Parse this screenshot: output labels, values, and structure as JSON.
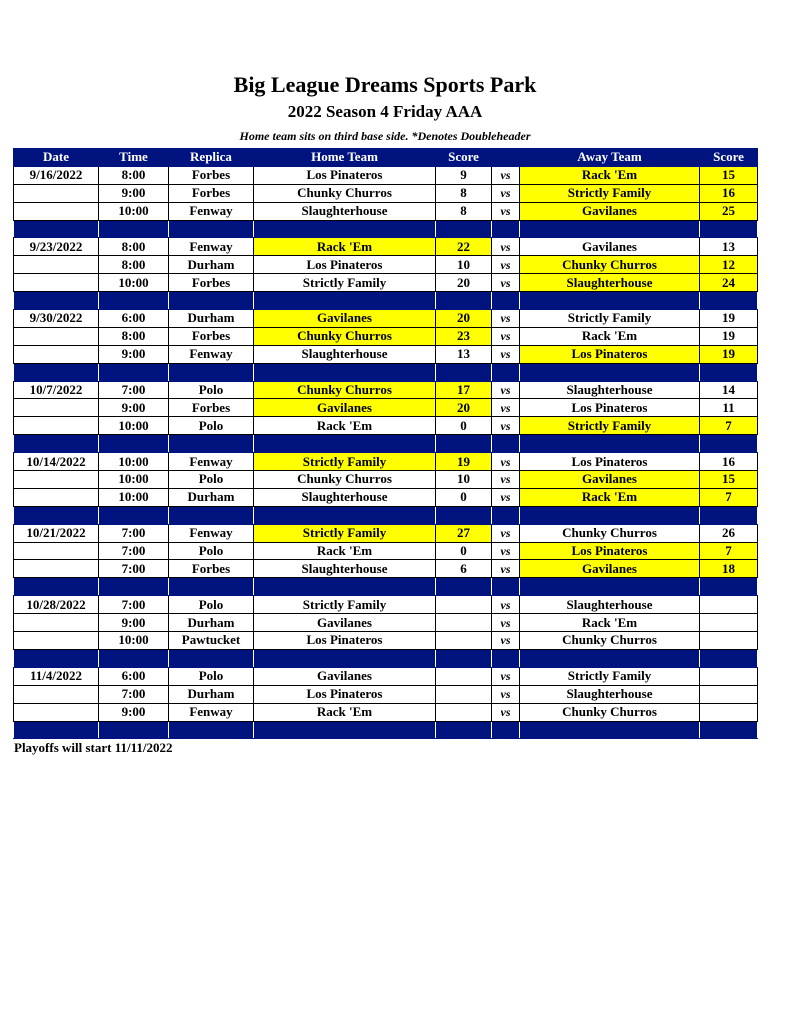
{
  "title": "Big League Dreams Sports Park",
  "subtitle": "2022 Season 4 Friday AAA",
  "note": "Home team sits on third base side.  *Denotes Doubleheader",
  "headers": [
    "Date",
    "Time",
    "Replica",
    "Home Team",
    "Score",
    "",
    "Away Team",
    "Score"
  ],
  "highlight_color": "#ffff00",
  "header_color": "#00137f",
  "weeks": [
    {
      "date": "9/16/2022",
      "games": [
        {
          "time": "8:00",
          "field": "Forbes",
          "home": "Los Pinateros",
          "hs": "9",
          "away": "Rack 'Em",
          "as": "15",
          "win": "away"
        },
        {
          "time": "9:00",
          "field": "Forbes",
          "home": "Chunky Churros",
          "hs": "8",
          "away": "Strictly Family",
          "as": "16",
          "win": "away"
        },
        {
          "time": "10:00",
          "field": "Fenway",
          "home": "Slaughterhouse",
          "hs": "8",
          "away": "Gavilanes",
          "as": "25",
          "win": "away"
        }
      ]
    },
    {
      "date": "9/23/2022",
      "games": [
        {
          "time": "8:00",
          "field": "Fenway",
          "home": "Rack 'Em",
          "hs": "22",
          "away": "Gavilanes",
          "as": "13",
          "win": "home"
        },
        {
          "time": "8:00",
          "field": "Durham",
          "home": "Los Pinateros",
          "hs": "10",
          "away": "Chunky Churros",
          "as": "12",
          "win": "away"
        },
        {
          "time": "10:00",
          "field": "Forbes",
          "home": "Strictly Family",
          "hs": "20",
          "away": "Slaughterhouse",
          "as": "24",
          "win": "away"
        }
      ]
    },
    {
      "date": "9/30/2022",
      "games": [
        {
          "time": "6:00",
          "field": "Durham",
          "home": "Gavilanes",
          "hs": "20",
          "away": "Strictly Family",
          "as": "19",
          "win": "home"
        },
        {
          "time": "8:00",
          "field": "Forbes",
          "home": "Chunky Churros",
          "hs": "23",
          "away": "Rack 'Em",
          "as": "19",
          "win": "home"
        },
        {
          "time": "9:00",
          "field": "Fenway",
          "home": "Slaughterhouse",
          "hs": "13",
          "away": "Los Pinateros",
          "as": "19",
          "win": "away"
        }
      ]
    },
    {
      "date": "10/7/2022",
      "games": [
        {
          "time": "7:00",
          "field": "Polo",
          "home": "Chunky Churros",
          "hs": "17",
          "away": "Slaughterhouse",
          "as": "14",
          "win": "home"
        },
        {
          "time": "9:00",
          "field": "Forbes",
          "home": "Gavilanes",
          "hs": "20",
          "away": "Los Pinateros",
          "as": "11",
          "win": "home"
        },
        {
          "time": "10:00",
          "field": "Polo",
          "home": "Rack 'Em",
          "hs": "0",
          "away": "Strictly Family",
          "as": "7",
          "win": "away"
        }
      ]
    },
    {
      "date": "10/14/2022",
      "games": [
        {
          "time": "10:00",
          "field": "Fenway",
          "home": "Strictly Family",
          "hs": "19",
          "away": "Los Pinateros",
          "as": "16",
          "win": "home"
        },
        {
          "time": "10:00",
          "field": "Polo",
          "home": "Chunky Churros",
          "hs": "10",
          "away": "Gavilanes",
          "as": "15",
          "win": "away"
        },
        {
          "time": "10:00",
          "field": "Durham",
          "home": "Slaughterhouse",
          "hs": "0",
          "away": "Rack 'Em",
          "as": "7",
          "win": "away"
        }
      ]
    },
    {
      "date": "10/21/2022",
      "games": [
        {
          "time": "7:00",
          "field": "Fenway",
          "home": "Strictly Family",
          "hs": "27",
          "away": "Chunky Churros",
          "as": "26",
          "win": "home"
        },
        {
          "time": "7:00",
          "field": "Polo",
          "home": "Rack 'Em",
          "hs": "0",
          "away": "Los Pinateros",
          "as": "7",
          "win": "away"
        },
        {
          "time": "7:00",
          "field": "Forbes",
          "home": "Slaughterhouse",
          "hs": "6",
          "away": "Gavilanes",
          "as": "18",
          "win": "away"
        }
      ]
    },
    {
      "date": "10/28/2022",
      "games": [
        {
          "time": "7:00",
          "field": "Polo",
          "home": "Strictly Family",
          "hs": "",
          "away": "Slaughterhouse",
          "as": "",
          "win": ""
        },
        {
          "time": "9:00",
          "field": "Durham",
          "home": "Gavilanes",
          "hs": "",
          "away": "Rack 'Em",
          "as": "",
          "win": ""
        },
        {
          "time": "10:00",
          "field": "Pawtucket",
          "home": "Los Pinateros",
          "hs": "",
          "away": "Chunky Churros",
          "as": "",
          "win": ""
        }
      ]
    },
    {
      "date": "11/4/2022",
      "games": [
        {
          "time": "6:00",
          "field": "Polo",
          "home": "Gavilanes",
          "hs": "",
          "away": "Strictly Family",
          "as": "",
          "win": ""
        },
        {
          "time": "7:00",
          "field": "Durham",
          "home": "Los Pinateros",
          "hs": "",
          "away": "Slaughterhouse",
          "as": "",
          "win": ""
        },
        {
          "time": "9:00",
          "field": "Fenway",
          "home": "Rack 'Em",
          "hs": "",
          "away": "Chunky Churros",
          "as": "",
          "win": ""
        }
      ]
    }
  ],
  "vs_label": "vs",
  "footer": "Playoffs will start 11/11/2022"
}
